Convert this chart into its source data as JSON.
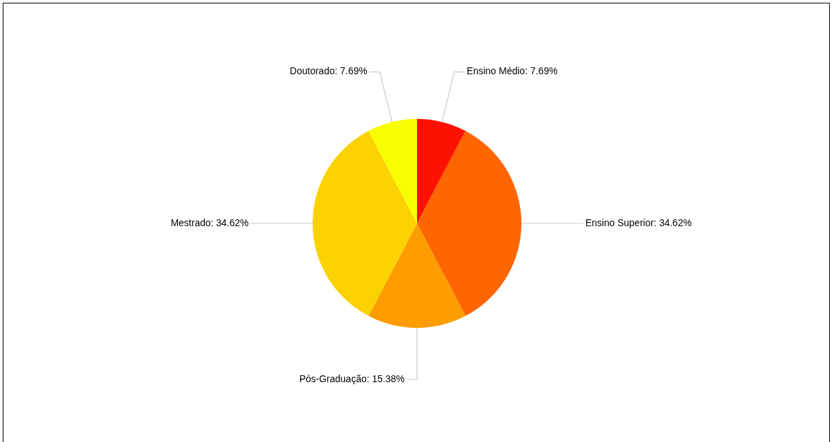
{
  "chart_data": {
    "type": "pie",
    "categories": [
      "Ensino Médio",
      "Ensino Superior",
      "Pós-Graduação",
      "Mestrado",
      "Doutorado"
    ],
    "values": [
      7.69,
      34.62,
      15.38,
      34.62,
      7.69
    ],
    "colors": [
      "#ff1100",
      "#ff6600",
      "#ff9c00",
      "#fbd200",
      "#f8ff00"
    ],
    "value_labels": [
      "7.69%",
      "34.62%",
      "15.38%",
      "34.62%",
      "7.69%"
    ],
    "legend": false
  }
}
